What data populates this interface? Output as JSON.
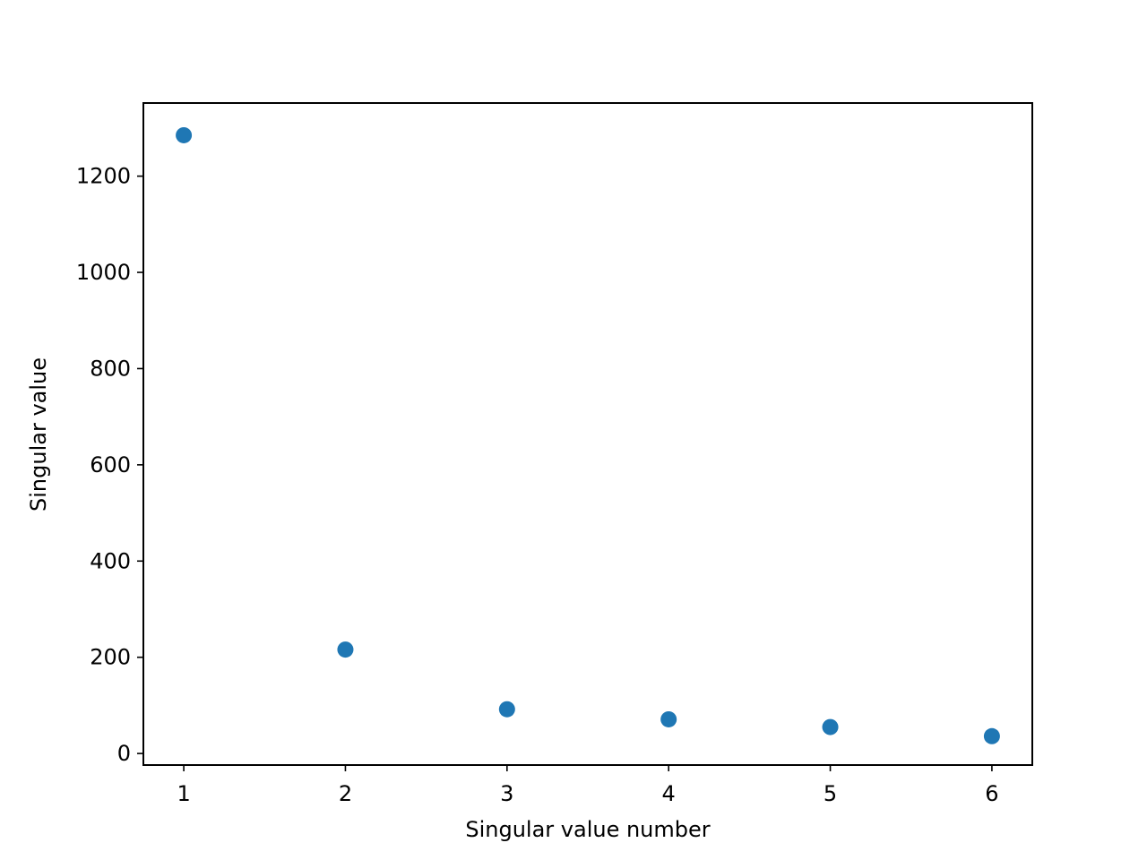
{
  "chart_data": {
    "type": "scatter",
    "title": "",
    "xlabel": "Singular value number",
    "ylabel": "Singular value",
    "x": [
      1,
      2,
      3,
      4,
      5,
      6
    ],
    "series": [
      {
        "values": [
          1285,
          216,
          92,
          71,
          55,
          36
        ],
        "color": "#1f77b4"
      }
    ],
    "xlim": [
      0.75,
      6.25
    ],
    "ylim": [
      -24,
      1352
    ],
    "xticks": [
      1,
      2,
      3,
      4,
      5,
      6
    ],
    "yticks": [
      0,
      200,
      400,
      600,
      800,
      1000,
      1200
    ],
    "grid": false,
    "legend": "none"
  }
}
